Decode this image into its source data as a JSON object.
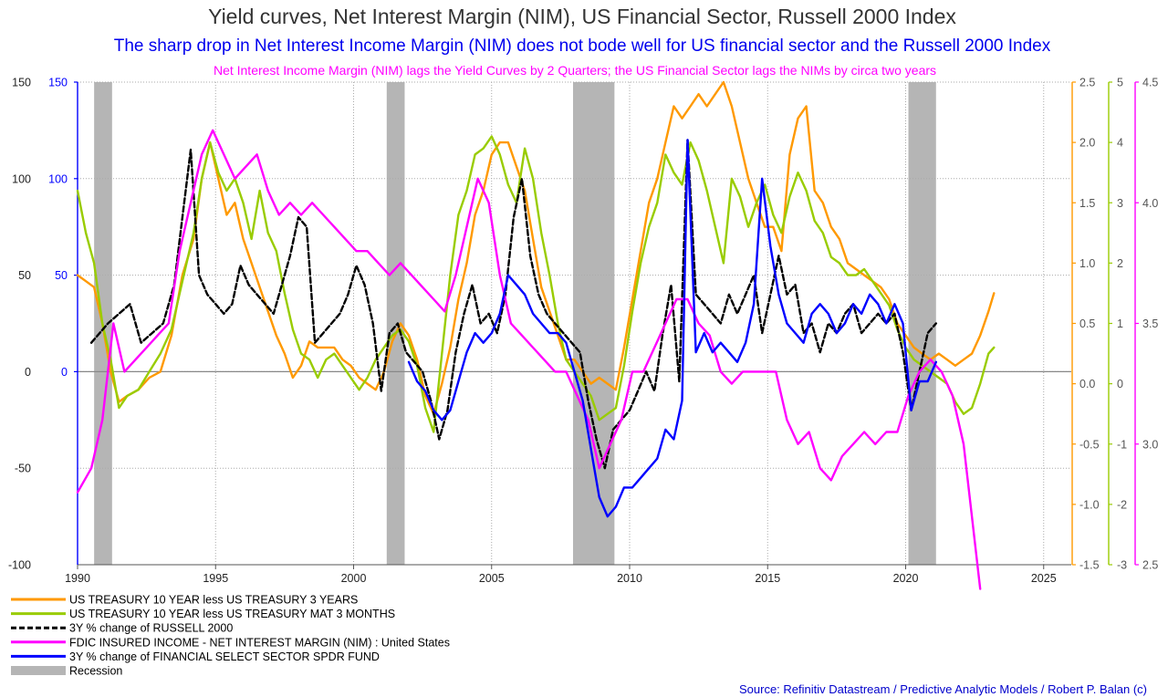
{
  "title": "Yield curves, Net Interest Margin (NIM), US Financial Sector, Russell 2000 Index",
  "subtitle": "The sharp drop in Net Interest Income Margin (NIM) does not bode well for US financial sector and the Russell 2000 Index",
  "subtitle2": "Net Interest Income Margin (NIM) lags the Yield Curves by 2 Quarters; the US Financial Sector lags the NIMs by circa two years",
  "source": "Source: Refinitiv Datastream / Predictive Analytic Models / Robert P. Balan (c)",
  "colors": {
    "orange": "#ff9900",
    "green": "#99cc00",
    "black": "#000000",
    "magenta": "#ff00ff",
    "blue": "#0000ff",
    "recession": "#b5b5b5",
    "grid": "#aaaaaa"
  },
  "chart_data": {
    "type": "line",
    "x_range": [
      1990,
      2026
    ],
    "x_ticks": [
      1990,
      1995,
      2000,
      2005,
      2010,
      2015,
      2020,
      2025
    ],
    "axes": {
      "left_black": {
        "range": [
          -100,
          150
        ],
        "ticks": [
          -100,
          -50,
          0,
          50,
          100,
          150
        ]
      },
      "left_blue": {
        "range": [
          -100,
          150
        ],
        "ticks": [
          0,
          50,
          100,
          150
        ]
      },
      "right_orange": {
        "range": [
          -1.5,
          2.5
        ],
        "ticks": [
          -1.5,
          -1.0,
          -0.5,
          0.0,
          0.5,
          1.0,
          1.5,
          2.0,
          2.5
        ]
      },
      "right_green": {
        "range": [
          -3,
          5
        ],
        "ticks": [
          -3,
          -2,
          -1,
          0,
          1,
          2,
          3,
          4,
          5
        ]
      },
      "right_magenta": {
        "range": [
          2.5,
          4.5
        ],
        "ticks": [
          2.5,
          3.0,
          3.5,
          4.0,
          4.5
        ]
      }
    },
    "recessions": [
      [
        1990.6,
        1991.25
      ],
      [
        2001.2,
        2001.85
      ],
      [
        2007.95,
        2009.45
      ],
      [
        2020.1,
        2021.1
      ]
    ],
    "series": [
      {
        "name": "US TREASURY 10 YEAR less US TREASURY 3 YEARS",
        "color": "orange",
        "axis": "right_orange",
        "x": [
          1990.0,
          1990.3,
          1990.6,
          1990.9,
          1991.2,
          1991.5,
          1991.8,
          1992.2,
          1992.6,
          1993.0,
          1993.4,
          1993.8,
          1994.2,
          1994.5,
          1994.8,
          1995.1,
          1995.4,
          1995.7,
          1996.0,
          1996.3,
          1996.6,
          1996.9,
          1997.2,
          1997.5,
          1997.8,
          1998.1,
          1998.4,
          1998.7,
          1999.0,
          1999.3,
          1999.6,
          1999.9,
          2000.2,
          2000.5,
          2000.8,
          2001.1,
          2001.4,
          2001.7,
          2002.0,
          2002.3,
          2002.6,
          2002.9,
          2003.2,
          2003.5,
          2003.8,
          2004.1,
          2004.4,
          2004.7,
          2005.0,
          2005.3,
          2005.6,
          2005.9,
          2006.2,
          2006.5,
          2006.8,
          2007.1,
          2007.4,
          2007.7,
          2008.0,
          2008.3,
          2008.6,
          2008.9,
          2009.2,
          2009.5,
          2009.8,
          2010.1,
          2010.4,
          2010.7,
          2011.0,
          2011.3,
          2011.6,
          2011.9,
          2012.2,
          2012.5,
          2012.8,
          2013.1,
          2013.4,
          2013.7,
          2014.0,
          2014.3,
          2014.6,
          2014.9,
          2015.2,
          2015.5,
          2015.8,
          2016.1,
          2016.4,
          2016.7,
          2017.0,
          2017.3,
          2017.6,
          2017.9,
          2018.2,
          2018.5,
          2018.8,
          2019.1,
          2019.4,
          2019.7,
          2020.0,
          2020.3,
          2020.6,
          2020.9,
          2021.2,
          2021.5,
          2021.8,
          2022.1,
          2022.4,
          2022.7,
          2023.0,
          2023.2
        ],
        "y": [
          0.9,
          0.85,
          0.8,
          0.5,
          0.1,
          -0.15,
          -0.1,
          -0.05,
          0.05,
          0.1,
          0.4,
          0.9,
          1.2,
          1.7,
          2.0,
          1.7,
          1.4,
          1.5,
          1.2,
          1.0,
          0.8,
          0.6,
          0.4,
          0.25,
          0.05,
          0.15,
          0.35,
          0.3,
          0.3,
          0.3,
          0.2,
          0.15,
          0.05,
          0.0,
          -0.05,
          0.1,
          0.35,
          0.5,
          0.4,
          0.2,
          -0.1,
          -0.25,
          0.0,
          0.3,
          0.7,
          1.0,
          1.4,
          1.6,
          1.9,
          2.0,
          2.0,
          1.8,
          1.6,
          1.2,
          0.8,
          0.6,
          0.4,
          0.2,
          0.2,
          0.1,
          0.0,
          0.05,
          0.0,
          -0.05,
          0.3,
          0.7,
          1.1,
          1.5,
          1.7,
          2.0,
          2.3,
          2.2,
          2.3,
          2.4,
          2.3,
          2.4,
          2.5,
          2.3,
          2.0,
          1.7,
          1.5,
          1.3,
          1.3,
          1.1,
          1.9,
          2.2,
          2.3,
          1.6,
          1.5,
          1.3,
          1.2,
          1.0,
          0.95,
          0.9,
          0.85,
          0.8,
          0.7,
          0.5,
          0.4,
          0.3,
          0.25,
          0.2,
          0.25,
          0.2,
          0.15,
          0.2,
          0.25,
          0.4,
          0.6,
          0.75
        ]
      },
      {
        "name": "US TREASURY 10 YEAR less US TREASURY MAT 3 MONTHS",
        "color": "green",
        "axis": "right_green",
        "x": [
          1990.0,
          1990.3,
          1990.6,
          1990.9,
          1991.2,
          1991.5,
          1991.8,
          1992.2,
          1992.6,
          1993.0,
          1993.4,
          1993.8,
          1994.2,
          1994.5,
          1994.8,
          1995.1,
          1995.4,
          1995.7,
          1996.0,
          1996.3,
          1996.6,
          1996.9,
          1997.2,
          1997.5,
          1997.8,
          1998.1,
          1998.4,
          1998.7,
          1999.0,
          1999.3,
          1999.6,
          1999.9,
          2000.2,
          2000.5,
          2000.8,
          2001.1,
          2001.4,
          2001.7,
          2002.0,
          2002.3,
          2002.6,
          2002.9,
          2003.2,
          2003.5,
          2003.8,
          2004.1,
          2004.4,
          2004.7,
          2005.0,
          2005.3,
          2005.6,
          2005.9,
          2006.2,
          2006.5,
          2006.8,
          2007.1,
          2007.4,
          2007.7,
          2008.0,
          2008.3,
          2008.6,
          2008.9,
          2009.2,
          2009.5,
          2009.8,
          2010.1,
          2010.4,
          2010.7,
          2011.0,
          2011.3,
          2011.6,
          2011.9,
          2012.2,
          2012.5,
          2012.8,
          2013.1,
          2013.4,
          2013.7,
          2014.0,
          2014.3,
          2014.6,
          2014.9,
          2015.2,
          2015.5,
          2015.8,
          2016.1,
          2016.4,
          2016.7,
          2017.0,
          2017.3,
          2017.6,
          2017.9,
          2018.2,
          2018.5,
          2018.8,
          2019.1,
          2019.4,
          2019.7,
          2020.0,
          2020.3,
          2020.6,
          2020.9,
          2021.2,
          2021.5,
          2021.8,
          2022.1,
          2022.4,
          2022.7,
          2023.0,
          2023.2
        ],
        "y": [
          3.2,
          2.5,
          2.0,
          1.0,
          0.4,
          -0.4,
          -0.2,
          -0.1,
          0.2,
          0.5,
          0.9,
          1.7,
          2.5,
          3.4,
          4.0,
          3.5,
          3.2,
          3.4,
          3.0,
          2.4,
          3.2,
          2.5,
          2.2,
          1.5,
          0.9,
          0.5,
          0.4,
          0.1,
          0.4,
          0.5,
          0.3,
          0.1,
          -0.1,
          0.1,
          0.4,
          0.6,
          0.8,
          0.9,
          0.7,
          0.3,
          -0.4,
          -0.8,
          0.5,
          1.8,
          2.8,
          3.2,
          3.8,
          3.9,
          4.1,
          3.8,
          3.3,
          3.0,
          3.9,
          3.4,
          2.5,
          1.8,
          1.0,
          0.4,
          0.2,
          0.0,
          -0.2,
          -0.6,
          -0.5,
          -0.4,
          0.3,
          1.2,
          2.0,
          2.6,
          3.0,
          3.8,
          3.5,
          3.3,
          4.0,
          3.7,
          3.2,
          2.6,
          2.0,
          3.4,
          3.1,
          2.6,
          3.0,
          3.3,
          2.8,
          2.5,
          3.1,
          3.5,
          3.2,
          2.7,
          2.5,
          2.1,
          2.0,
          1.8,
          1.8,
          1.9,
          1.7,
          1.5,
          1.3,
          0.9,
          0.6,
          0.4,
          0.3,
          0.2,
          0.1,
          0.0,
          -0.3,
          -0.5,
          -0.4,
          0.0,
          0.5,
          0.6
        ]
      },
      {
        "name": "3Y % change of RUSSELL 2000",
        "color": "black",
        "axis": "left_black",
        "dashed": true,
        "x": [
          1990.5,
          1990.8,
          1991.1,
          1991.5,
          1991.9,
          1992.3,
          1992.7,
          1993.1,
          1993.5,
          1993.8,
          1994.1,
          1994.4,
          1994.7,
          1995.0,
          1995.3,
          1995.6,
          1995.9,
          1996.2,
          1996.5,
          1996.8,
          1997.1,
          1997.4,
          1997.7,
          1998.0,
          1998.3,
          1998.6,
          1998.9,
          1999.2,
          1999.5,
          1999.8,
          2000.1,
          2000.4,
          2000.7,
          2001.0,
          2001.3,
          2001.6,
          2001.9,
          2002.2,
          2002.5,
          2002.8,
          2003.1,
          2003.4,
          2003.7,
          2004.0,
          2004.3,
          2004.6,
          2004.9,
          2005.2,
          2005.5,
          2005.8,
          2006.1,
          2006.4,
          2006.7,
          2007.0,
          2007.3,
          2007.6,
          2007.9,
          2008.2,
          2008.5,
          2008.8,
          2009.1,
          2009.4,
          2009.7,
          2010.0,
          2010.3,
          2010.6,
          2010.9,
          2011.2,
          2011.5,
          2011.8,
          2012.1,
          2012.4,
          2012.7,
          2013.0,
          2013.3,
          2013.6,
          2013.9,
          2014.2,
          2014.5,
          2014.8,
          2015.1,
          2015.4,
          2015.7,
          2016.0,
          2016.3,
          2016.6,
          2016.9,
          2017.2,
          2017.5,
          2017.8,
          2018.1,
          2018.4,
          2018.7,
          2019.0,
          2019.3,
          2019.6,
          2019.9,
          2020.2,
          2020.5,
          2020.8,
          2021.1
        ],
        "y": [
          15,
          20,
          25,
          30,
          35,
          15,
          20,
          25,
          45,
          80,
          115,
          50,
          40,
          35,
          30,
          35,
          55,
          45,
          40,
          35,
          30,
          45,
          60,
          80,
          75,
          15,
          20,
          25,
          30,
          40,
          55,
          45,
          25,
          -10,
          20,
          25,
          10,
          5,
          0,
          -15,
          -35,
          -20,
          10,
          30,
          45,
          25,
          30,
          20,
          40,
          80,
          100,
          60,
          40,
          30,
          25,
          20,
          15,
          10,
          -15,
          -35,
          -50,
          -30,
          -25,
          -20,
          -10,
          0,
          -10,
          20,
          45,
          -5,
          120,
          40,
          35,
          30,
          25,
          40,
          30,
          40,
          50,
          20,
          40,
          60,
          40,
          45,
          20,
          25,
          10,
          25,
          20,
          30,
          35,
          20,
          25,
          30,
          25,
          30,
          10,
          -20,
          0,
          20,
          25
        ]
      },
      {
        "name": "FDIC INSURED INCOME - NET INTEREST MARGIN (NIM) : United States",
        "color": "magenta",
        "axis": "right_magenta",
        "x": [
          1990.0,
          1990.5,
          1990.9,
          1991.3,
          1991.7,
          1992.1,
          1992.5,
          1992.9,
          1993.3,
          1993.7,
          1994.1,
          1994.5,
          1994.9,
          1995.3,
          1995.7,
          1996.1,
          1996.5,
          1996.9,
          1997.3,
          1997.7,
          1998.1,
          1998.5,
          1998.9,
          1999.3,
          1999.7,
          2000.1,
          2000.5,
          2000.9,
          2001.3,
          2001.7,
          2002.1,
          2002.5,
          2002.9,
          2003.3,
          2003.7,
          2004.1,
          2004.5,
          2004.9,
          2005.3,
          2005.7,
          2006.1,
          2006.5,
          2006.9,
          2007.3,
          2007.7,
          2008.1,
          2008.5,
          2008.9,
          2009.3,
          2009.7,
          2010.1,
          2010.5,
          2010.9,
          2011.3,
          2011.7,
          2012.1,
          2012.5,
          2012.9,
          2013.3,
          2013.7,
          2014.1,
          2014.5,
          2014.9,
          2015.3,
          2015.7,
          2016.1,
          2016.5,
          2016.9,
          2017.3,
          2017.7,
          2018.1,
          2018.5,
          2018.9,
          2019.3,
          2019.7,
          2020.1,
          2020.5,
          2020.9,
          2021.3,
          2021.7,
          2022.1,
          2022.4,
          2022.7
        ],
        "y": [
          2.8,
          2.9,
          3.1,
          3.5,
          3.3,
          3.35,
          3.4,
          3.45,
          3.5,
          3.8,
          4.0,
          4.2,
          4.3,
          4.2,
          4.1,
          4.15,
          4.2,
          4.05,
          3.95,
          4.0,
          3.95,
          4.0,
          3.95,
          3.9,
          3.85,
          3.8,
          3.8,
          3.75,
          3.7,
          3.75,
          3.7,
          3.65,
          3.6,
          3.55,
          3.7,
          3.9,
          4.1,
          4.0,
          3.7,
          3.5,
          3.45,
          3.4,
          3.35,
          3.3,
          3.3,
          3.2,
          3.1,
          2.9,
          3.0,
          3.1,
          3.3,
          3.3,
          3.4,
          3.5,
          3.6,
          3.6,
          3.5,
          3.45,
          3.3,
          3.25,
          3.3,
          3.3,
          3.3,
          3.3,
          3.1,
          3.0,
          3.05,
          2.9,
          2.85,
          2.95,
          3.0,
          3.05,
          3.0,
          3.05,
          3.05,
          3.2,
          3.3,
          3.35,
          3.3,
          3.2,
          3.0,
          2.7,
          2.4
        ]
      },
      {
        "name": "3Y % change of FINANCIAL SELECT SECTOR SPDR FUND",
        "color": "blue",
        "axis": "left_blue",
        "x": [
          2002.0,
          2002.3,
          2002.6,
          2002.9,
          2003.2,
          2003.5,
          2003.8,
          2004.1,
          2004.4,
          2004.7,
          2005.0,
          2005.3,
          2005.6,
          2005.9,
          2006.2,
          2006.5,
          2006.8,
          2007.1,
          2007.4,
          2007.7,
          2008.0,
          2008.3,
          2008.6,
          2008.9,
          2009.2,
          2009.5,
          2009.8,
          2010.1,
          2010.4,
          2010.7,
          2011.0,
          2011.3,
          2011.6,
          2011.9,
          2012.1,
          2012.4,
          2012.7,
          2013.0,
          2013.3,
          2013.6,
          2013.9,
          2014.2,
          2014.5,
          2014.8,
          2015.1,
          2015.4,
          2015.7,
          2016.0,
          2016.3,
          2016.6,
          2016.9,
          2017.2,
          2017.5,
          2017.8,
          2018.1,
          2018.4,
          2018.7,
          2019.0,
          2019.3,
          2019.6,
          2019.9,
          2020.2,
          2020.5,
          2020.8,
          2021.1
        ],
        "y": [
          5,
          -5,
          -10,
          -20,
          -25,
          -20,
          -5,
          10,
          20,
          15,
          20,
          30,
          50,
          45,
          40,
          30,
          25,
          20,
          20,
          15,
          0,
          -15,
          -40,
          -65,
          -75,
          -70,
          -60,
          -60,
          -55,
          -50,
          -45,
          -30,
          -35,
          -15,
          120,
          10,
          20,
          10,
          15,
          10,
          5,
          15,
          35,
          100,
          65,
          40,
          25,
          20,
          15,
          30,
          35,
          30,
          20,
          25,
          35,
          30,
          40,
          35,
          25,
          35,
          25,
          -20,
          -5,
          -5,
          5
        ]
      }
    ]
  },
  "legend": {
    "items": [
      {
        "label": "US TREASURY 10 YEAR less US TREASURY 3 YEARS",
        "color": "orange",
        "style": "solid"
      },
      {
        "label": "US TREASURY 10 YEAR less US TREASURY MAT 3 MONTHS",
        "color": "green",
        "style": "solid"
      },
      {
        "label": "3Y % change of RUSSELL 2000",
        "color": "black",
        "style": "dashed"
      },
      {
        "label": "FDIC INSURED INCOME - NET INTEREST MARGIN (NIM) : United States",
        "color": "magenta",
        "style": "solid"
      },
      {
        "label": "3Y % change of FINANCIAL SELECT SECTOR SPDR FUND",
        "color": "blue",
        "style": "solid"
      },
      {
        "label": "Recession",
        "color": "recession",
        "style": "box"
      }
    ]
  }
}
